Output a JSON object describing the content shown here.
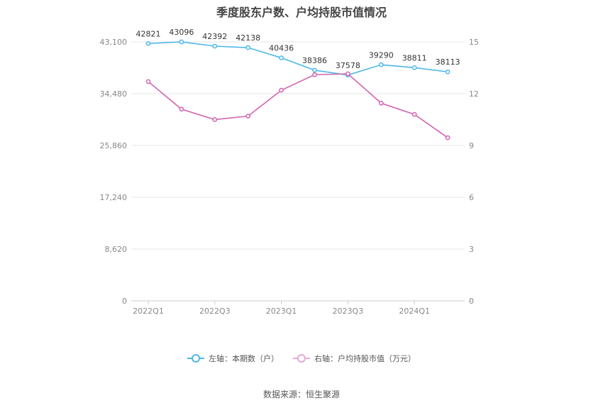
{
  "chart_data": {
    "type": "line",
    "title": "季度股东户数、户均持股市值情况",
    "x_ticks_shown": [
      "2022Q1",
      "2022Q3",
      "2023Q1",
      "2023Q3",
      "2024Q1"
    ],
    "left_axis": {
      "ticks": [
        "0",
        "8,620",
        "17,240",
        "25,860",
        "34,480",
        "43,100"
      ],
      "range": [
        0,
        43100
      ]
    },
    "right_axis": {
      "ticks": [
        "0",
        "3",
        "6",
        "9",
        "12",
        "15"
      ],
      "range": [
        0,
        15
      ]
    },
    "series": [
      {
        "name": "左轴：本期数（户）",
        "axis": "left",
        "color": "#4db8ea",
        "values": [
          42821,
          43096,
          42392,
          42138,
          40436,
          38386,
          37578,
          39290,
          38811,
          38113
        ],
        "labels": [
          "42821",
          "43096",
          "42392",
          "42138",
          "40436",
          "38386",
          "37578",
          "39290",
          "38811",
          "38113"
        ]
      },
      {
        "name": "右轴：户均持股市值（万元）",
        "axis": "right",
        "color": "#d264b0",
        "values": [
          12.7,
          11.1,
          10.5,
          10.7,
          12.2,
          13.1,
          13.15,
          11.45,
          10.8,
          9.45
        ]
      }
    ],
    "grid": true,
    "legend_position": "bottom-center",
    "source": "数据来源：恒生聚源"
  }
}
